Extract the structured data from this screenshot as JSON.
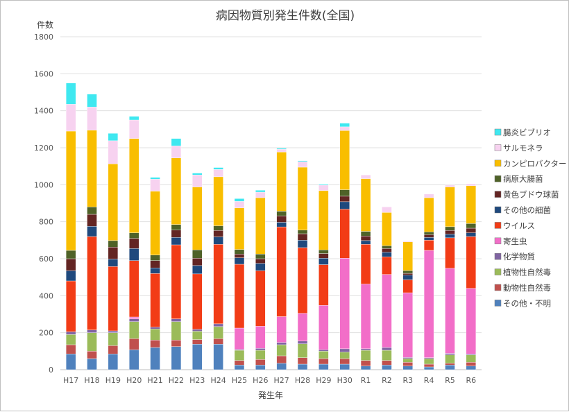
{
  "chart_data": {
    "type": "bar",
    "stacked": true,
    "title": "病因物質別発生件数(全国)",
    "ylabel": "件数",
    "xlabel": "発生年",
    "ylim": [
      0,
      1800
    ],
    "yticks": [
      0,
      200,
      400,
      600,
      800,
      1000,
      1200,
      1400,
      1600,
      1800
    ],
    "categories": [
      "H17",
      "H18",
      "H19",
      "H20",
      "H21",
      "H22",
      "H23",
      "H24",
      "H25",
      "H26",
      "H27",
      "H28",
      "H29",
      "H30",
      "R1",
      "R2",
      "R3",
      "R4",
      "R5",
      "R6"
    ],
    "series": [
      {
        "name": "その他・不明",
        "color": "#4f81bd",
        "values": [
          85,
          60,
          85,
          108,
          120,
          125,
          138,
          138,
          25,
          25,
          35,
          30,
          30,
          30,
          20,
          25,
          20,
          15,
          25,
          20
        ]
      },
      {
        "name": "動物性自然毒",
        "color": "#c0504d",
        "values": [
          50,
          40,
          45,
          60,
          40,
          35,
          25,
          30,
          25,
          30,
          40,
          35,
          30,
          30,
          30,
          25,
          20,
          15,
          10,
          20
        ]
      },
      {
        "name": "植物性自然毒",
        "color": "#9bbb59",
        "values": [
          55,
          100,
          70,
          92,
          60,
          100,
          45,
          65,
          55,
          50,
          60,
          75,
          40,
          35,
          55,
          55,
          20,
          30,
          45,
          40
        ]
      },
      {
        "name": "化学物質",
        "color": "#8064a2",
        "values": [
          15,
          15,
          10,
          15,
          10,
          15,
          10,
          15,
          5,
          10,
          12,
          15,
          8,
          18,
          8,
          15,
          6,
          5,
          8,
          5
        ]
      },
      {
        "name": "寄生虫",
        "color": "#f26ec8",
        "values": [
          0,
          0,
          0,
          10,
          0,
          0,
          0,
          0,
          115,
          120,
          140,
          150,
          240,
          490,
          350,
          395,
          350,
          580,
          460,
          355
        ]
      },
      {
        "name": "ウイルス",
        "color": "#f23c16",
        "values": [
          275,
          505,
          348,
          305,
          290,
          400,
          300,
          430,
          345,
          300,
          485,
          355,
          220,
          265,
          215,
          95,
          70,
          55,
          165,
          280
        ]
      },
      {
        "name": "その他の細菌",
        "color": "#1f497d",
        "values": [
          55,
          55,
          40,
          65,
          30,
          40,
          45,
          40,
          35,
          40,
          25,
          40,
          35,
          40,
          20,
          25,
          25,
          15,
          20,
          20
        ]
      },
      {
        "name": "黄色ブドウ球菌",
        "color": "#632523",
        "values": [
          65,
          65,
          65,
          55,
          40,
          40,
          40,
          35,
          20,
          25,
          35,
          35,
          25,
          30,
          25,
          20,
          10,
          15,
          20,
          25
        ]
      },
      {
        "name": "病原大腸菌",
        "color": "#4f6228",
        "values": [
          45,
          40,
          35,
          30,
          30,
          30,
          45,
          25,
          25,
          25,
          25,
          20,
          20,
          35,
          25,
          15,
          15,
          15,
          20,
          25
        ]
      },
      {
        "name": "カンピロバクター",
        "color": "#f9be00",
        "values": [
          645,
          415,
          415,
          510,
          345,
          360,
          340,
          265,
          225,
          305,
          320,
          340,
          320,
          320,
          285,
          180,
          155,
          185,
          215,
          205
        ]
      },
      {
        "name": "サルモネラ",
        "color": "#f7d2f0",
        "values": [
          145,
          125,
          125,
          100,
          65,
          65,
          65,
          40,
          35,
          30,
          15,
          30,
          30,
          20,
          20,
          30,
          5,
          20,
          10,
          10
        ]
      },
      {
        "name": "腸炎ビブリオ",
        "color": "#3fe8f0",
        "values": [
          115,
          70,
          40,
          20,
          10,
          40,
          10,
          10,
          15,
          10,
          5,
          5,
          5,
          20,
          0,
          0,
          0,
          0,
          0,
          0
        ]
      }
    ]
  }
}
